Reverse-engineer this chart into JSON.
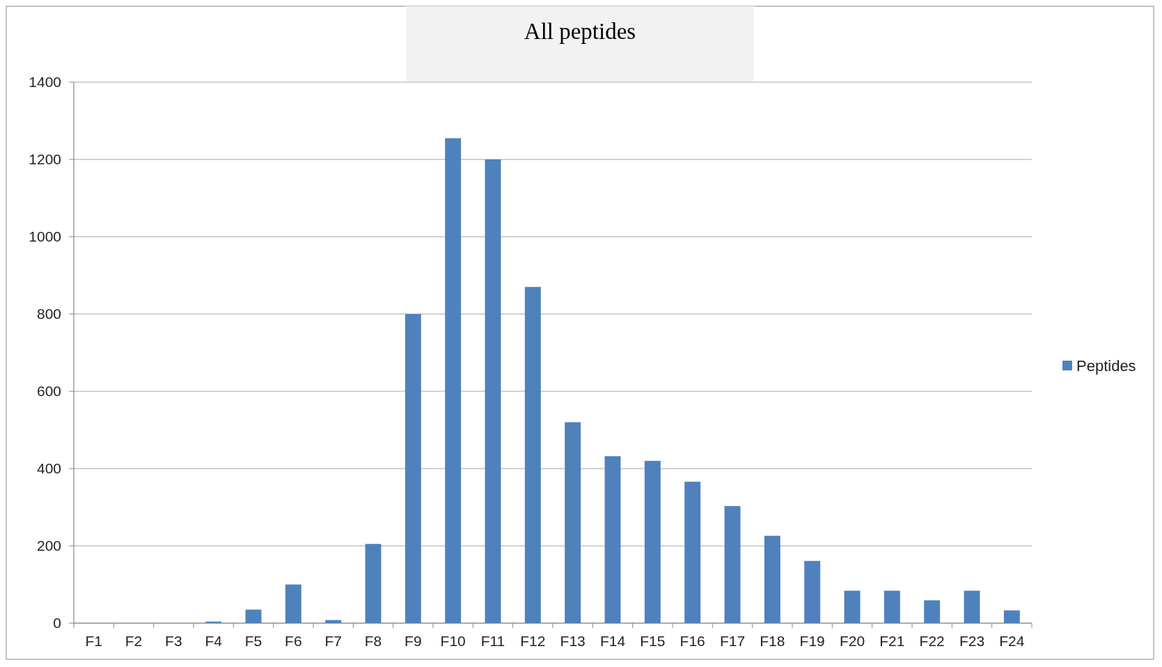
{
  "chart_data": {
    "type": "bar",
    "title": "All peptides",
    "categories": [
      "F1",
      "F2",
      "F3",
      "F4",
      "F5",
      "F6",
      "F7",
      "F8",
      "F9",
      "F10",
      "F11",
      "F12",
      "F13",
      "F14",
      "F15",
      "F16",
      "F17",
      "F18",
      "F19",
      "F20",
      "F21",
      "F22",
      "F23",
      "F24"
    ],
    "series": [
      {
        "name": "Peptides",
        "color": "#4f81bd",
        "values": [
          0,
          0,
          0,
          4,
          35,
          100,
          8,
          205,
          800,
          1255,
          1200,
          870,
          520,
          432,
          420,
          366,
          303,
          226,
          161,
          84,
          84,
          59,
          84,
          33
        ]
      }
    ],
    "ylim": [
      0,
      1400
    ],
    "yticks": [
      0,
      200,
      400,
      600,
      800,
      1000,
      1200,
      1400
    ],
    "grid": "y",
    "legend": "right"
  }
}
